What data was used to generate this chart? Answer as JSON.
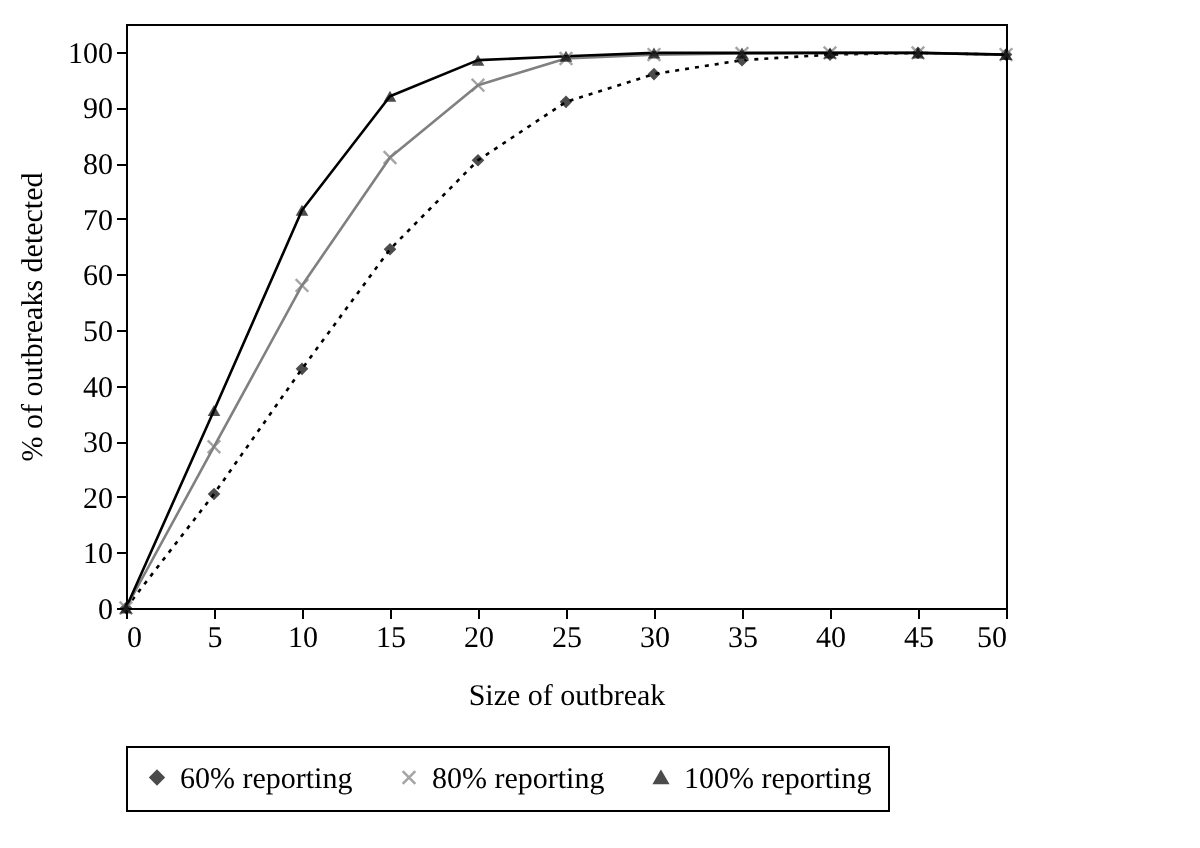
{
  "chart_data": {
    "type": "line",
    "xlabel": "Size of outbreak",
    "ylabel": "% of outbreaks detected",
    "x": [
      0,
      5,
      10,
      15,
      20,
      25,
      30,
      35,
      40,
      45,
      50
    ],
    "series": [
      {
        "name": "60% reporting",
        "color": "#000000",
        "marker": "diamond",
        "line_style": "dotted",
        "values": [
          0,
          20.5,
          43,
          64.5,
          80.5,
          91,
          96,
          98.5,
          99.5,
          99.8,
          99.5
        ]
      },
      {
        "name": "80% reporting",
        "color": "#808080",
        "marker": "cross",
        "line_style": "solid",
        "values": [
          0,
          29,
          58,
          81,
          94,
          98.8,
          99.5,
          99.7,
          99.8,
          99.8,
          99.5
        ]
      },
      {
        "name": "100% reporting",
        "color": "#000000",
        "marker": "triangle",
        "line_style": "solid",
        "values": [
          0,
          35.5,
          71.5,
          92,
          98.5,
          99.2,
          99.8,
          99.8,
          99.8,
          99.8,
          99.5
        ]
      }
    ],
    "xlim": [
      0,
      50
    ],
    "xticks": [
      0,
      5,
      10,
      15,
      20,
      25,
      30,
      35,
      40,
      45,
      50
    ],
    "ylim": [
      0,
      105
    ],
    "yticks": [
      0,
      10,
      20,
      30,
      40,
      50,
      60,
      70,
      80,
      90,
      100
    ],
    "grid": false,
    "legend": "bottom"
  }
}
